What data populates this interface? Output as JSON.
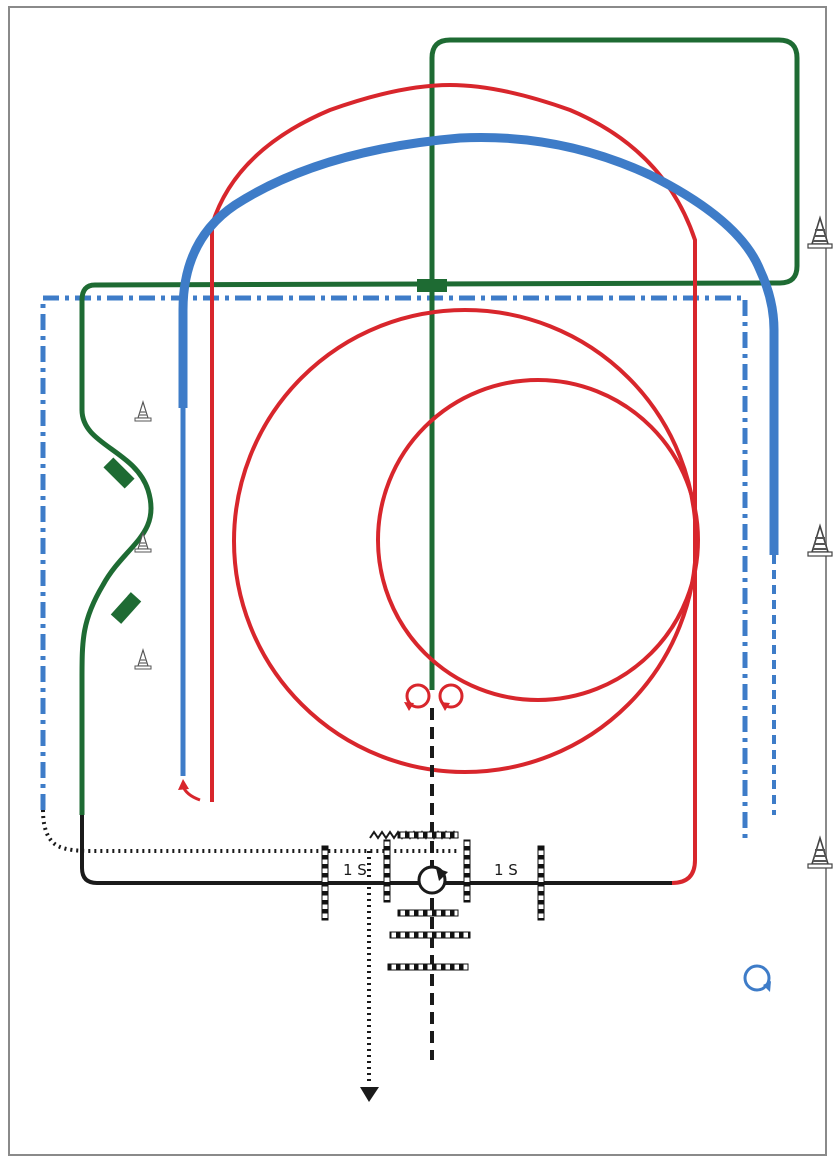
{
  "diagram": {
    "labels": {
      "left_interval": "1 S",
      "right_interval": "1 S"
    },
    "colors": {
      "green": "#1e6b33",
      "red": "#d8262c",
      "blue": "#3e7cc8",
      "black": "#1a1a1a",
      "frame": "#8a8a8a"
    },
    "icons": {
      "cone": "traffic-cone-icon",
      "loop": "loop-arrow-icon",
      "arrow": "arrow-head-icon",
      "board": "striped-board-icon"
    }
  }
}
